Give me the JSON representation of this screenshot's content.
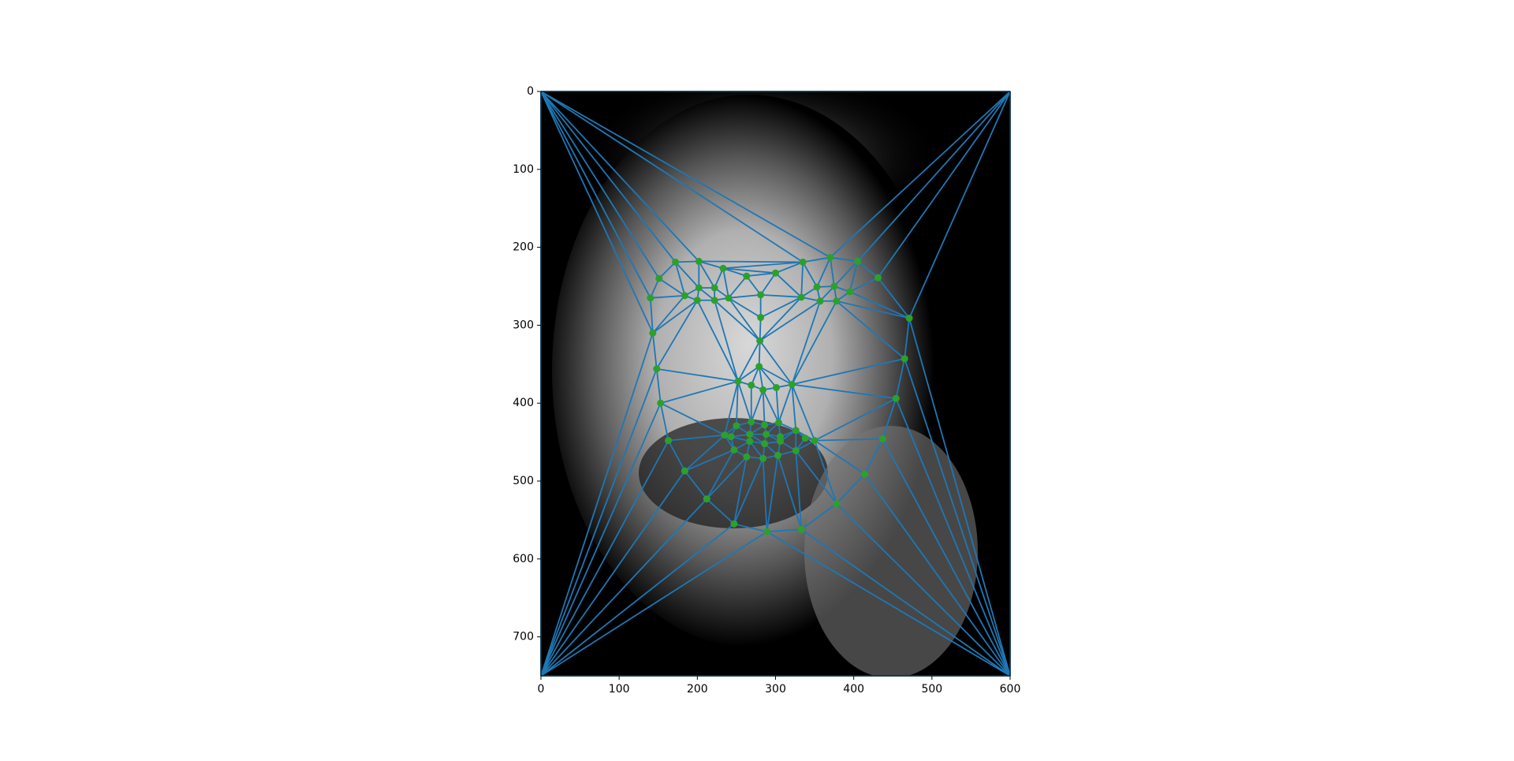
{
  "chart_data": {
    "type": "scatter",
    "x": [
      151,
      140,
      143,
      148,
      153,
      163,
      184,
      212,
      247,
      289,
      333,
      378,
      414,
      437,
      454,
      465,
      471,
      172,
      202,
      233,
      263,
      300,
      335,
      370,
      405,
      431,
      281,
      281,
      280,
      279,
      252,
      269,
      284,
      301,
      321,
      184,
      202,
      222,
      240,
      222,
      200,
      333,
      353,
      375,
      395,
      378,
      357,
      235,
      250,
      269,
      286,
      304,
      326,
      350,
      326,
      303,
      284,
      263,
      247,
      243,
      267,
      288,
      306,
      338,
      306,
      286,
      267
    ],
    "y": [
      240,
      265,
      310,
      356,
      400,
      448,
      487,
      523,
      555,
      565,
      562,
      529,
      491,
      446,
      394,
      343,
      291,
      219,
      218,
      227,
      237,
      233,
      219,
      213,
      218,
      239,
      261,
      290,
      320,
      353,
      372,
      377,
      383,
      380,
      376,
      262,
      252,
      252,
      265,
      268,
      268,
      264,
      251,
      250,
      257,
      269,
      269,
      441,
      429,
      424,
      428,
      425,
      435,
      448,
      461,
      467,
      471,
      469,
      460,
      443,
      440,
      440,
      443,
      445,
      449,
      452,
      449
    ],
    "point_color": "#2ca02c",
    "line_color": "#1f77b4",
    "xlim": [
      0,
      600
    ],
    "ylim": [
      750,
      0
    ],
    "xticks": [
      0,
      100,
      200,
      300,
      400,
      500,
      600
    ],
    "yticks": [
      0,
      100,
      200,
      300,
      400,
      500,
      600,
      700
    ]
  }
}
